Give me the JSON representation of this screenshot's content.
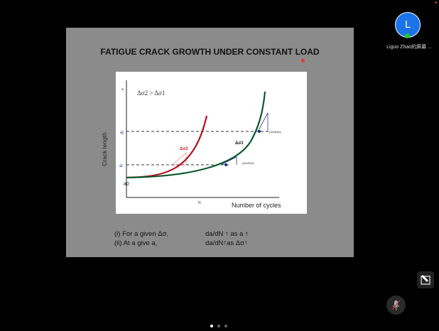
{
  "slide": {
    "title": "FATIGUE CRACK GROWTH UNDER CONSTANT LOAD",
    "figure": {
      "condition": "Δσ2 > Δσ1",
      "ylabel": "Crack length",
      "xlabel": "Number of cycles",
      "y_ticks": [
        "a",
        "aj",
        "ai",
        "a0"
      ],
      "x_tick": "N",
      "curve_labels": [
        "Δσ2",
        "Δσ1"
      ],
      "slope_labels": [
        "(da/dN)aj",
        "(da/dN)ai"
      ]
    },
    "notes": [
      {
        "left": "(i)   For a given Δσ,",
        "right": "da/dN ↑  as a ↑"
      },
      {
        "left": "(ii)  At a give a,",
        "right": "da/dN↑as Δσ↑"
      }
    ]
  },
  "participant": {
    "initial": "L",
    "name": "Liguo Zhao的屏幕 ..."
  },
  "colors": {
    "avatar": "#1a73e8",
    "curve_high": "#b01020",
    "curve_low": "#0a7a3a"
  }
}
